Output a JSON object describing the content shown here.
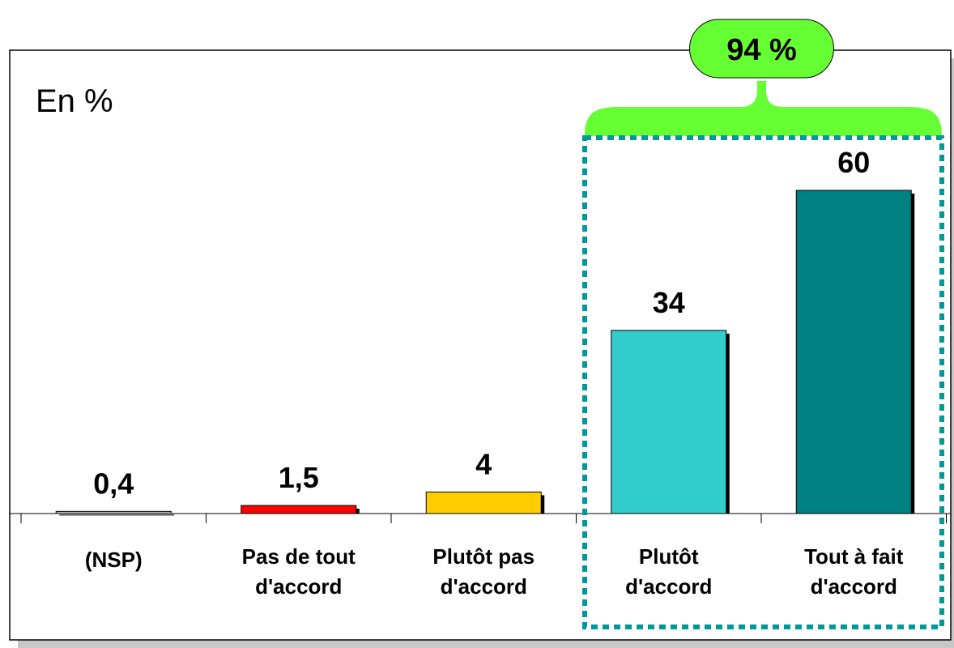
{
  "chart_data": {
    "type": "bar",
    "unit_label": "En %",
    "categories": [
      [
        "(NSP)"
      ],
      [
        "Pas de tout",
        "d'accord"
      ],
      [
        "Plutôt pas",
        "d'accord"
      ],
      [
        "Plutôt",
        "d'accord"
      ],
      [
        "Tout à fait",
        "d'accord"
      ]
    ],
    "values": [
      0.4,
      1.5,
      4,
      34,
      60
    ],
    "value_labels": [
      "0,4",
      "1,5",
      "4",
      "34",
      "60"
    ],
    "bar_colors": [
      "#bdbdbd",
      "#ff0000",
      "#ffcc00",
      "#33cccc",
      "#008080"
    ],
    "ylim": [
      0,
      60
    ],
    "grid": false,
    "legend": "none",
    "group_highlight": {
      "label": "94 %",
      "categories": [
        "Plutôt",
        "Tout à fait"
      ],
      "badge_color": "#66ff33",
      "outline_color": "#009999"
    }
  }
}
